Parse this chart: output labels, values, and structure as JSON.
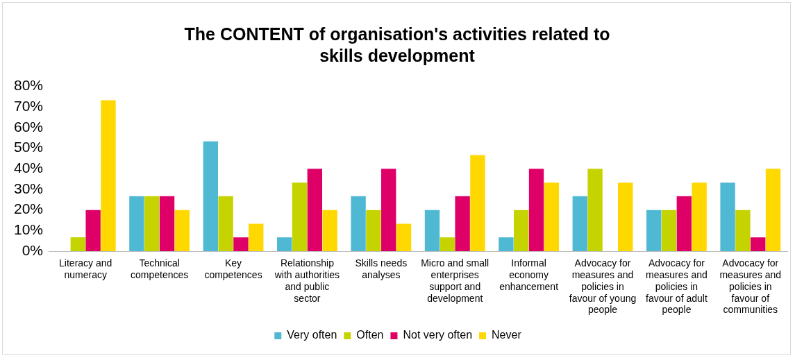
{
  "chart_data": {
    "type": "bar",
    "title": "The CONTENT of organisation's activities related to skills development",
    "categories": [
      "Literacy and numeracy",
      "Technical competences",
      "Key competences",
      "Relationship with authorities and public sector",
      "Skills needs analyses",
      "Micro and small enterprises support and development",
      "Informal economy enhancement",
      "Advocacy for measures and policies in favour of young people",
      "Advocacy for measures and policies in favour of adult people",
      "Advocacy for measures and policies in favour of communities"
    ],
    "series": [
      {
        "name": "Very often",
        "color": "#4fb8d3",
        "values": [
          0,
          26.7,
          53.3,
          6.7,
          26.7,
          20,
          6.7,
          26.7,
          20,
          33.3
        ]
      },
      {
        "name": "Often",
        "color": "#c5d300",
        "values": [
          6.7,
          26.7,
          26.7,
          33.3,
          20,
          6.7,
          20,
          40,
          20,
          20
        ]
      },
      {
        "name": "Not very often",
        "color": "#df0067",
        "values": [
          20,
          26.7,
          6.7,
          40,
          40,
          26.7,
          40,
          0,
          26.7,
          6.7
        ]
      },
      {
        "name": "Never",
        "color": "#ffd800",
        "values": [
          73.3,
          20,
          13.3,
          20,
          13.3,
          46.7,
          33.3,
          33.3,
          33.3,
          40
        ]
      }
    ],
    "ylim": [
      0,
      80
    ],
    "yticks": [
      {
        "value": 0,
        "label": "0%"
      },
      {
        "value": 10,
        "label": "10%"
      },
      {
        "value": 20,
        "label": "20%"
      },
      {
        "value": 30,
        "label": "30%"
      },
      {
        "value": 40,
        "label": "40%"
      },
      {
        "value": 50,
        "label": "50%"
      },
      {
        "value": 60,
        "label": "60%"
      },
      {
        "value": 70,
        "label": "70%"
      },
      {
        "value": 80,
        "label": "80%"
      }
    ],
    "grid": false,
    "legend": "bottom"
  }
}
